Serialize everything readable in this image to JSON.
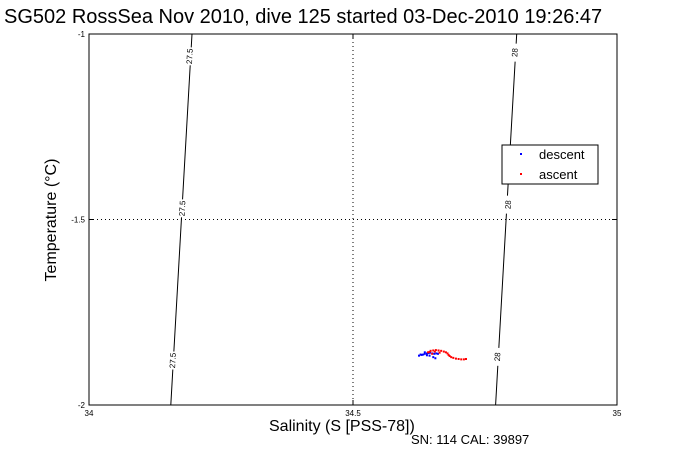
{
  "chart_data": {
    "type": "scatter",
    "title": "SG502 RossSea Nov 2010, dive 125 started 03-Dec-2010 19:26:47",
    "xlabel": "Salinity (S [PSS-78])",
    "ylabel": "Temperature (°C)",
    "xlim": [
      34,
      35
    ],
    "ylim": [
      -2,
      -1
    ],
    "xticks": [
      34,
      34.5,
      35
    ],
    "xtick_labels": [
      "34",
      "34.5",
      "35"
    ],
    "yticks": [
      -2,
      -1.5,
      -1
    ],
    "ytick_labels": [
      "-2",
      "-1.5",
      "-1"
    ],
    "grid": true,
    "legend_position": "right",
    "footnote": "SN: 114  CAL: 39897",
    "contours": [
      {
        "label": "27.5",
        "points": [
          [
            34.155,
            -2.0
          ],
          [
            34.175,
            -1.5
          ],
          [
            34.195,
            -1.0
          ]
        ],
        "label_positions": [
          [
            34.19,
            -1.06
          ],
          [
            34.176,
            -1.47
          ],
          [
            34.158,
            -1.88
          ]
        ]
      },
      {
        "label": "28",
        "points": [
          [
            34.77,
            -2.0
          ],
          [
            34.79,
            -1.5
          ],
          [
            34.81,
            -1.0
          ]
        ],
        "label_positions": [
          [
            34.806,
            -1.05
          ],
          [
            34.793,
            -1.46
          ],
          [
            34.773,
            -1.87
          ]
        ]
      }
    ],
    "series": [
      {
        "name": "descent",
        "color": "#0000ff",
        "points": [
          [
            34.625,
            -1.867
          ],
          [
            34.63,
            -1.865
          ],
          [
            34.633,
            -1.864
          ],
          [
            34.636,
            -1.862
          ],
          [
            34.64,
            -1.861
          ],
          [
            34.643,
            -1.86
          ],
          [
            34.646,
            -1.859
          ],
          [
            34.65,
            -1.861
          ],
          [
            34.654,
            -1.862
          ],
          [
            34.658,
            -1.861
          ],
          [
            34.661,
            -1.862
          ],
          [
            34.64,
            -1.866
          ],
          [
            34.645,
            -1.867
          ],
          [
            34.636,
            -1.858
          ],
          [
            34.628,
            -1.864
          ],
          [
            34.652,
            -1.871
          ],
          [
            34.656,
            -1.874
          ]
        ]
      },
      {
        "name": "ascent",
        "color": "#ff0000",
        "points": [
          [
            34.642,
            -1.858
          ],
          [
            34.647,
            -1.854
          ],
          [
            34.652,
            -1.853
          ],
          [
            34.657,
            -1.852
          ],
          [
            34.662,
            -1.853
          ],
          [
            34.667,
            -1.854
          ],
          [
            34.672,
            -1.856
          ],
          [
            34.676,
            -1.858
          ],
          [
            34.679,
            -1.861
          ],
          [
            34.681,
            -1.865
          ],
          [
            34.683,
            -1.868
          ],
          [
            34.686,
            -1.871
          ],
          [
            34.69,
            -1.873
          ],
          [
            34.695,
            -1.875
          ],
          [
            34.7,
            -1.876
          ],
          [
            34.705,
            -1.877
          ],
          [
            34.71,
            -1.877
          ],
          [
            34.714,
            -1.876
          ],
          [
            34.645,
            -1.857
          ],
          [
            34.65,
            -1.862
          ],
          [
            34.655,
            -1.856
          ],
          [
            34.664,
            -1.859
          ]
        ]
      }
    ]
  }
}
